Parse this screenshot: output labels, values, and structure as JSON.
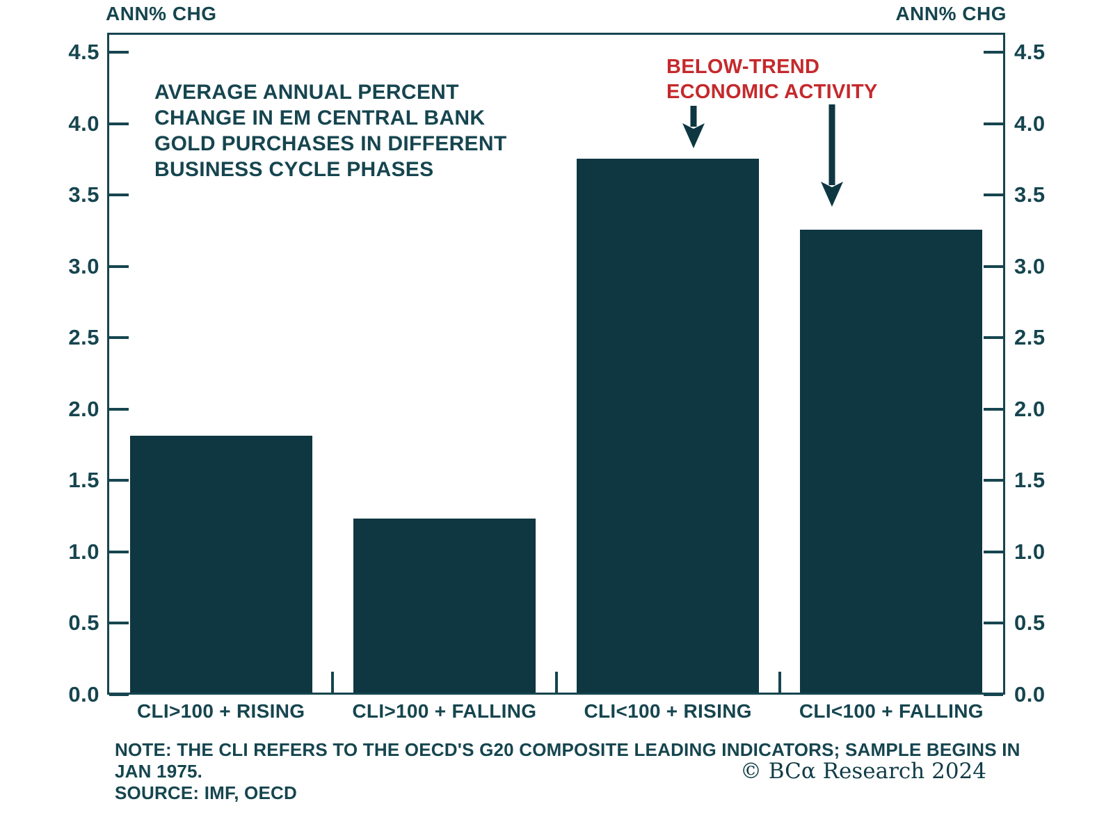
{
  "chart_data": {
    "type": "bar",
    "title_lines": [
      "AVERAGE ANNUAL PERCENT",
      "CHANGE IN EM CENTRAL BANK",
      "GOLD PURCHASES IN DIFFERENT",
      "BUSINESS CYCLE PHASES"
    ],
    "categories": [
      "CLI>100 + RISING",
      "CLI>100 + FALLING",
      "CLI<100 + RISING",
      "CLI<100 + FALLING"
    ],
    "values": [
      1.8,
      1.22,
      3.74,
      3.24
    ],
    "ylabel_left": "ANN% CHG",
    "ylabel_right": "ANN% CHG",
    "ylim": [
      0.0,
      4.5
    ],
    "ytick_step": 0.5,
    "y_ticks": [
      "4.5",
      "4.0",
      "3.5",
      "3.0",
      "2.5",
      "2.0",
      "1.5",
      "1.0",
      "0.5",
      "0.0"
    ],
    "grid": false,
    "legend": "none",
    "annotation": {
      "lines": [
        "BELOW-TREND",
        "ECONOMIC ACTIVITY"
      ],
      "arrow_targets": [
        "CLI<100 + RISING",
        "CLI<100 + FALLING"
      ]
    },
    "colors": {
      "bar": "#0e3741",
      "text": "#16454f",
      "annotation_red": "#c5292c"
    }
  },
  "footer": {
    "note_lines": [
      "NOTE: THE CLI REFERS TO THE OECD'S G20 COMPOSITE LEADING INDICATORS; SAMPLE BEGINS IN",
      "JAN 1975.",
      "SOURCE: IMF, OECD"
    ],
    "copyright": "© BCα Research 2024"
  }
}
